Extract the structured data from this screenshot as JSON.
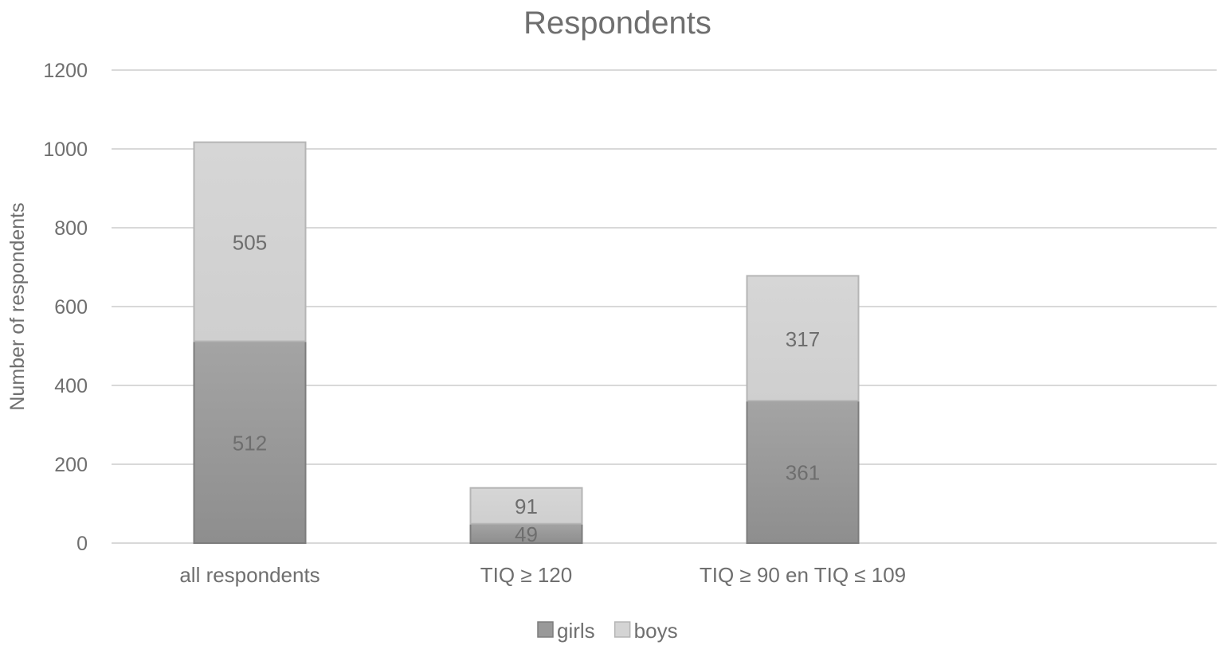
{
  "chart_data": {
    "type": "bar",
    "stacked": true,
    "title": "Respondents",
    "xlabel": "",
    "ylabel": "Number of respondents",
    "ylim": [
      0,
      1200
    ],
    "yticks": [
      0,
      200,
      400,
      600,
      800,
      1000,
      1200
    ],
    "grid": true,
    "legend_position": "bottom",
    "categories": [
      "all respondents",
      "TIQ ≥ 120",
      "TIQ ≥ 90 en TIQ ≤ 109"
    ],
    "series": [
      {
        "name": "girls",
        "values": [
          512,
          49,
          361
        ],
        "color": "#999999"
      },
      {
        "name": "boys",
        "values": [
          505,
          91,
          317
        ],
        "color": "#d4d4d4"
      }
    ]
  }
}
